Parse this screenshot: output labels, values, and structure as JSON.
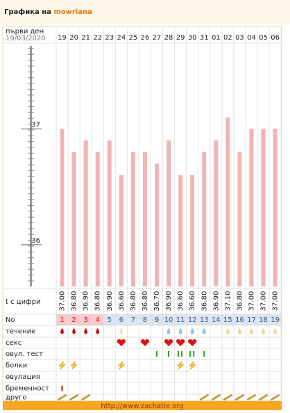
{
  "header": {
    "title": "Графика на",
    "user": "mowriana"
  },
  "chart_data": {
    "type": "bar",
    "first_day_label": "първи ден",
    "first_day_date": "19/03/2020",
    "categories": [
      "19",
      "20",
      "21",
      "22",
      "23",
      "24",
      "25",
      "26",
      "27",
      "28",
      "29",
      "30",
      "31",
      "01",
      "02",
      "03",
      "04",
      "05",
      "06"
    ],
    "values": [
      37.0,
      36.8,
      36.9,
      36.8,
      36.9,
      36.6,
      36.8,
      36.8,
      36.7,
      36.9,
      36.6,
      36.6,
      36.8,
      36.9,
      37.1,
      36.8,
      37.0,
      37.0,
      37.0
    ],
    "value_labels": [
      "37.00",
      "36.80",
      "36.90",
      "36.80",
      "36.90",
      "36.60",
      "36.80",
      "36.80",
      "36.70",
      "36.90",
      "36.60",
      "36.60",
      "36.80",
      "36.90",
      "37.10",
      "36.80",
      "37.00",
      "37.00",
      "37.00"
    ],
    "color": "#f2b3b3",
    "ylim": [
      35.64,
      37.74
    ],
    "yticks": [
      36,
      37
    ],
    "temp_row_label": "t с цифри",
    "cycle_day_label": "No",
    "cycle_days": [
      1,
      2,
      3,
      4,
      5,
      6,
      7,
      8,
      9,
      10,
      11,
      12,
      13,
      14,
      15,
      16,
      17,
      18,
      19
    ]
  },
  "rows": [
    "течение",
    "секс",
    "овул. тест",
    "болки",
    "овулация",
    "бременност",
    "друго"
  ],
  "footer": {
    "url": "http://www.zachatie.org"
  }
}
